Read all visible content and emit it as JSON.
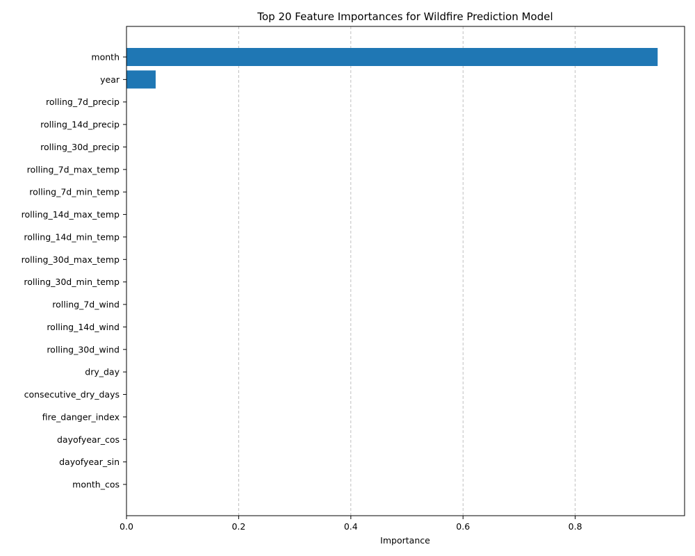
{
  "chart_data": {
    "type": "bar",
    "orientation": "horizontal",
    "title": "Top 20 Feature Importances for Wildfire Prediction Model",
    "xlabel": "Importance",
    "ylabel": "",
    "xlim": [
      0,
      0.995
    ],
    "xticks": [
      0.0,
      0.2,
      0.4,
      0.6,
      0.8
    ],
    "xtick_labels": [
      "0.0",
      "0.2",
      "0.4",
      "0.6",
      "0.8"
    ],
    "grid": "x-dashed",
    "bar_color": "#1f77b4",
    "categories": [
      "month",
      "year",
      "rolling_7d_precip",
      "rolling_14d_precip",
      "rolling_30d_precip",
      "rolling_7d_max_temp",
      "rolling_7d_min_temp",
      "rolling_14d_max_temp",
      "rolling_14d_min_temp",
      "rolling_30d_max_temp",
      "rolling_30d_min_temp",
      "rolling_7d_wind",
      "rolling_14d_wind",
      "rolling_30d_wind",
      "dry_day",
      "consecutive_dry_days",
      "fire_danger_index",
      "dayofyear_cos",
      "dayofyear_sin",
      "month_cos"
    ],
    "values": [
      0.947,
      0.052,
      0,
      0,
      0,
      0,
      0,
      0,
      0,
      0,
      0,
      0,
      0,
      0,
      0,
      0,
      0,
      0,
      0,
      0
    ]
  }
}
